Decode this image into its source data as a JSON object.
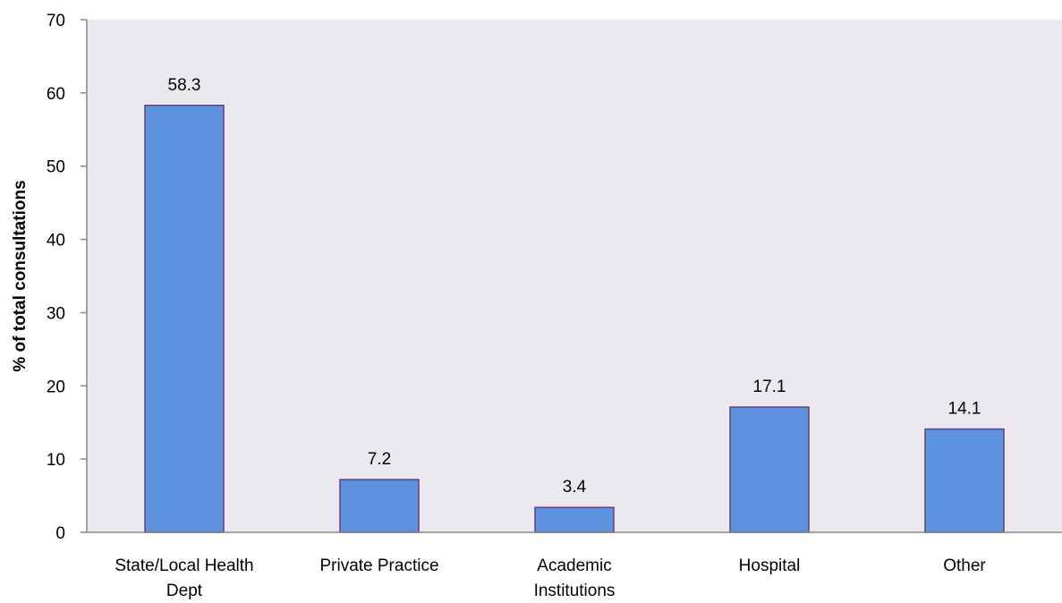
{
  "chart_data": {
    "type": "bar",
    "title": "",
    "xlabel": "",
    "ylabel": "% of total consultations",
    "ylim": [
      0,
      70
    ],
    "yticks": [
      0,
      10,
      20,
      30,
      40,
      50,
      60,
      70
    ],
    "grid": false,
    "categories": [
      [
        "State/Local Health",
        "Dept"
      ],
      [
        "Private Practice"
      ],
      [
        "Academic",
        "Institutions"
      ],
      [
        "Hospital"
      ],
      [
        "Other"
      ]
    ],
    "values": [
      58.3,
      7.2,
      3.4,
      17.1,
      14.1
    ],
    "value_labels": [
      "58.3",
      "7.2",
      "3.4",
      "17.1",
      "14.1"
    ],
    "colors": {
      "plot_background": "#ebe8ef",
      "bar_fill": "#5b93de",
      "bar_stroke": "#6b3d78",
      "axis": "#888888"
    }
  }
}
